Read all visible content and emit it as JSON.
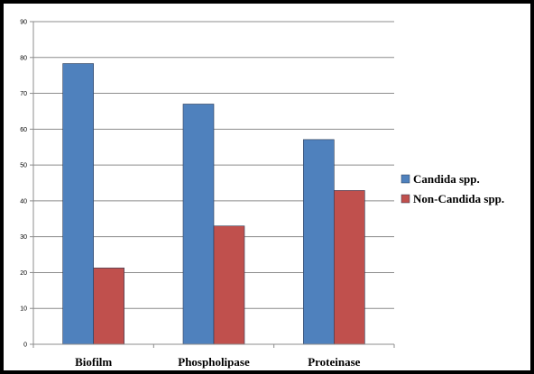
{
  "chart_data": {
    "type": "bar",
    "title": "",
    "xlabel": "",
    "ylabel": "",
    "categories": [
      "Biofilm",
      "Phospholipase",
      "Proteinase"
    ],
    "series": [
      {
        "name": "Candida spp.",
        "values": [
          78.3,
          67.0,
          57.1
        ],
        "color": "#4F81BD"
      },
      {
        "name": "Non-Candida spp.",
        "values": [
          21.3,
          33.0,
          42.9
        ],
        "color": "#C0504D"
      }
    ],
    "ylim": [
      0,
      90
    ],
    "yticks": [
      "0",
      "10",
      "20",
      "30",
      "40",
      "50",
      "60",
      "70",
      "80",
      "90"
    ],
    "grid": true,
    "legend_position": "right"
  }
}
